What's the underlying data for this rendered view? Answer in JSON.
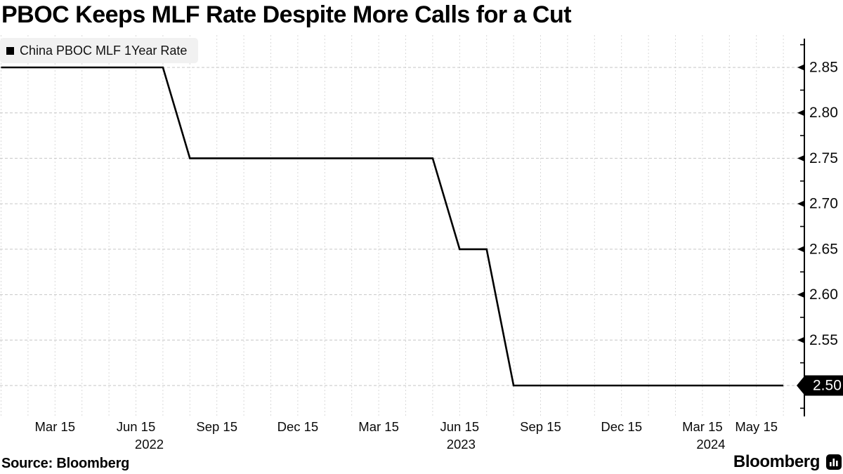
{
  "header": {
    "title": "PBOC Keeps MLF Rate Despite More Calls for a Cut"
  },
  "legend": {
    "label": "China PBOC MLF 1Year Rate",
    "marker_color": "#000000",
    "background": "#f1f1f1",
    "position": "top-left"
  },
  "footer": {
    "source": "Source: Bloomberg",
    "brand": "Bloomberg",
    "brand_icon": "bloomberg-terminal-icon"
  },
  "colors": {
    "series_line": "#000000",
    "axis": "#000000",
    "grid_horizontal": "#c6c6c6",
    "grid_vertical": "#d9d9d9",
    "text": "#0a0a0a",
    "last_value_bg": "#000000",
    "last_value_text": "#ffffff",
    "background": "#ffffff"
  },
  "chart_data": {
    "type": "line",
    "title": "PBOC Keeps MLF Rate Despite More Calls for a Cut",
    "xlabel": "",
    "ylabel": "",
    "grid": "dashed",
    "legend_position": "top-left",
    "axis_side": "right",
    "ylim": [
      2.467,
      2.882
    ],
    "series": [
      {
        "name": "China PBOC MLF 1Year Rate",
        "color": "#000000",
        "x": [
          "Jan 2022",
          "Feb 2022",
          "Mar 2022",
          "Apr 2022",
          "May 2022",
          "Jun 2022",
          "Jul 2022",
          "Aug 2022",
          "Sep 2022",
          "Oct 2022",
          "Nov 2022",
          "Dec 2022",
          "Jan 2023",
          "Feb 2023",
          "Mar 2023",
          "Apr 2023",
          "May 2023",
          "Jun 2023",
          "Jul 2023",
          "Aug 2023",
          "Sep 2023",
          "Oct 2023",
          "Nov 2023",
          "Dec 2023",
          "Jan 2024",
          "Feb 2024",
          "Mar 2024",
          "Apr 2024",
          "May 2024",
          "Jun 2024"
        ],
        "values": [
          2.85,
          2.85,
          2.85,
          2.85,
          2.85,
          2.85,
          2.85,
          2.75,
          2.75,
          2.75,
          2.75,
          2.75,
          2.75,
          2.75,
          2.75,
          2.75,
          2.75,
          2.65,
          2.65,
          2.5,
          2.5,
          2.5,
          2.5,
          2.5,
          2.5,
          2.5,
          2.5,
          2.5,
          2.5,
          2.5
        ]
      }
    ],
    "y_ticks_major": [
      2.85,
      2.8,
      2.75,
      2.7,
      2.65,
      2.6,
      2.55,
      2.5
    ],
    "y_ticks_minor": [
      2.875,
      2.825,
      2.775,
      2.725,
      2.675,
      2.625,
      2.575,
      2.525,
      2.475
    ],
    "x_ticks": [
      {
        "label": "Mar 15",
        "month_index": 2
      },
      {
        "label": "Jun 15",
        "month_index": 5
      },
      {
        "label": "Sep 15",
        "month_index": 8
      },
      {
        "label": "Dec 15",
        "month_index": 11
      },
      {
        "label": "Mar 15",
        "month_index": 14
      },
      {
        "label": "Jun 15",
        "month_index": 17
      },
      {
        "label": "Sep 15",
        "month_index": 20
      },
      {
        "label": "Dec 15",
        "month_index": 23
      },
      {
        "label": "Mar 15",
        "month_index": 26
      },
      {
        "label": "May 15",
        "month_index": 28
      }
    ],
    "year_labels": [
      {
        "label": "2022",
        "month_index": 5,
        "dx": 19
      },
      {
        "label": "2023",
        "month_index": 17,
        "dx": 2
      },
      {
        "label": "2024",
        "month_index": 26,
        "dx": 12
      }
    ],
    "last_value_label": "2.50"
  }
}
